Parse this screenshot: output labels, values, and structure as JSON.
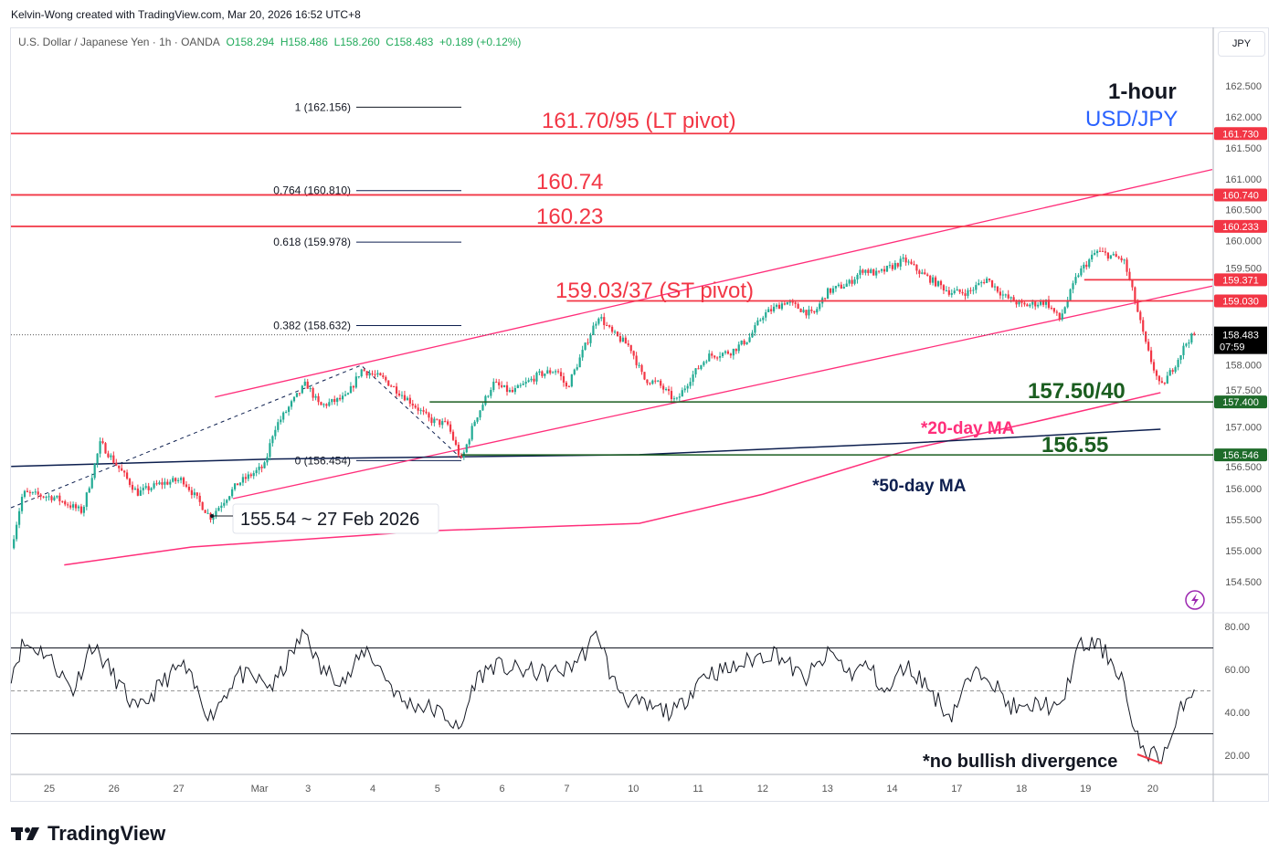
{
  "credit": "Kelvin-Wong created with TradingView.com, Mar 20, 2026 16:52 UTC+8",
  "legend": {
    "symbol": "U.S. Dollar / Japanese Yen · 1h · OANDA",
    "o": "O158.294",
    "h": "H158.486",
    "l": "L158.260",
    "c": "C158.483",
    "chg": "+0.189 (+0.12%)"
  },
  "currency_button": "JPY",
  "logo": "TradingView",
  "colors": {
    "up": "#22ab94",
    "down": "#f23645",
    "resistance": "#f23645",
    "support": "#1b5e20",
    "ma20": "#ff2e7a",
    "ma50": "#0d1f4f",
    "title_blue": "#2962ff"
  },
  "chart_data": [
    {
      "type": "candlestick",
      "timeframe": "1h",
      "ylim": [
        154.2,
        163.0
      ],
      "y_ticks": [
        "162.500",
        "162.000",
        "161.500",
        "161.000",
        "160.500",
        "160.000",
        "159.500",
        "158.000",
        "157.500",
        "157.000",
        "156.500",
        "156.000",
        "155.500",
        "155.000",
        "154.500"
      ],
      "x_ticks": [
        {
          "label": "25",
          "t": 0
        },
        {
          "label": "26",
          "t": 1
        },
        {
          "label": "27",
          "t": 2
        },
        {
          "label": "Mar",
          "t": 3.25
        },
        {
          "label": "3",
          "t": 4
        },
        {
          "label": "4",
          "t": 5
        },
        {
          "label": "5",
          "t": 6
        },
        {
          "label": "6",
          "t": 7
        },
        {
          "label": "7",
          "t": 8
        },
        {
          "label": "10",
          "t": 9.03
        },
        {
          "label": "11",
          "t": 10.03
        },
        {
          "label": "12",
          "t": 11.03
        },
        {
          "label": "13",
          "t": 12.03
        },
        {
          "label": "14",
          "t": 13.03
        },
        {
          "label": "17",
          "t": 14.03
        },
        {
          "label": "18",
          "t": 15.03
        },
        {
          "label": "19",
          "t": 16.02
        },
        {
          "label": "20",
          "t": 17.06
        }
      ],
      "price_path": [
        [
          -0.59,
          155.04
        ],
        [
          -0.41,
          155.93
        ],
        [
          0.08,
          155.86
        ],
        [
          0.51,
          155.63
        ],
        [
          0.79,
          156.74
        ],
        [
          1.0,
          156.44
        ],
        [
          1.36,
          155.93
        ],
        [
          1.71,
          156.08
        ],
        [
          2.06,
          156.15
        ],
        [
          2.49,
          155.54
        ],
        [
          2.91,
          156.08
        ],
        [
          3.33,
          156.37
        ],
        [
          3.47,
          156.96
        ],
        [
          3.76,
          157.4
        ],
        [
          3.97,
          157.7
        ],
        [
          4.18,
          157.33
        ],
        [
          4.6,
          157.48
        ],
        [
          4.82,
          157.92
        ],
        [
          5.17,
          157.77
        ],
        [
          5.59,
          157.4
        ],
        [
          5.88,
          157.11
        ],
        [
          6.16,
          157.03
        ],
        [
          6.37,
          156.45
        ],
        [
          6.58,
          157.11
        ],
        [
          6.86,
          157.7
        ],
        [
          7.15,
          157.55
        ],
        [
          7.57,
          157.84
        ],
        [
          7.85,
          157.92
        ],
        [
          8.0,
          157.62
        ],
        [
          8.28,
          158.29
        ],
        [
          8.49,
          158.8
        ],
        [
          8.7,
          158.51
        ],
        [
          8.98,
          158.29
        ],
        [
          9.19,
          157.77
        ],
        [
          9.41,
          157.7
        ],
        [
          9.69,
          157.4
        ],
        [
          9.9,
          157.77
        ],
        [
          10.18,
          158.14
        ],
        [
          10.54,
          158.21
        ],
        [
          10.82,
          158.43
        ],
        [
          11.03,
          158.8
        ],
        [
          11.38,
          159.02
        ],
        [
          11.81,
          158.8
        ],
        [
          12.02,
          159.17
        ],
        [
          12.37,
          159.32
        ],
        [
          12.58,
          159.54
        ],
        [
          12.8,
          159.46
        ],
        [
          13.22,
          159.69
        ],
        [
          13.5,
          159.46
        ],
        [
          13.93,
          159.17
        ],
        [
          14.21,
          159.17
        ],
        [
          14.49,
          159.39
        ],
        [
          14.77,
          159.1
        ],
        [
          15.06,
          158.95
        ],
        [
          15.41,
          159.02
        ],
        [
          15.62,
          158.73
        ],
        [
          15.9,
          159.46
        ],
        [
          16.19,
          159.83
        ],
        [
          16.61,
          159.69
        ],
        [
          16.75,
          159.17
        ],
        [
          16.96,
          158.29
        ],
        [
          17.18,
          157.62
        ],
        [
          17.39,
          157.98
        ],
        [
          17.6,
          158.4
        ],
        [
          17.71,
          158.48
        ]
      ],
      "last_price": "158.483",
      "countdown": "07:59",
      "levels": [
        {
          "price": 161.73,
          "label": "161.730",
          "kind": "resistance"
        },
        {
          "price": 160.74,
          "label": "160.740",
          "kind": "resistance"
        },
        {
          "price": 160.233,
          "label": "160.233",
          "kind": "resistance"
        },
        {
          "price": 159.371,
          "label": "159.371",
          "kind": "resistance",
          "from_t": 16.0
        },
        {
          "price": 159.03,
          "label": "159.030",
          "kind": "resistance",
          "from_t": 8.0
        },
        {
          "price": 157.4,
          "label": "157.400",
          "kind": "support",
          "from_t": 5.88
        },
        {
          "price": 156.546,
          "label": "156.546",
          "kind": "support",
          "from_t": 6.37
        }
      ],
      "fibonacci": [
        {
          "label": "1 (162.156)",
          "price": 162.156
        },
        {
          "label": "0.764 (160.810)",
          "price": 160.81
        },
        {
          "label": "0.618 (159.978)",
          "price": 159.978
        },
        {
          "label": "0.382 (158.632)",
          "price": 158.632
        },
        {
          "label": "0 (156.454)",
          "price": 156.454
        }
      ],
      "channel": {
        "upper": [
          [
            2.56,
            157.48
          ],
          [
            17.98,
            161.15
          ]
        ],
        "lower": [
          [
            2.84,
            155.84
          ],
          [
            17.98,
            159.27
          ]
        ]
      },
      "ma20": [
        [
          0.23,
          154.77
        ],
        [
          2.2,
          155.06
        ],
        [
          5.88,
          155.32
        ],
        [
          9.12,
          155.44
        ],
        [
          11.03,
          155.91
        ],
        [
          13.36,
          156.65
        ],
        [
          15.2,
          157.07
        ],
        [
          17.18,
          157.55
        ]
      ],
      "ma50": [
        [
          -0.59,
          156.36
        ],
        [
          3.47,
          156.48
        ],
        [
          9.12,
          156.55
        ],
        [
          13.36,
          156.74
        ],
        [
          17.18,
          156.96
        ]
      ],
      "annotations": [
        {
          "text": "161.70/95  (LT pivot)",
          "kind": "resistance"
        },
        {
          "text": "160.74",
          "kind": "resistance"
        },
        {
          "text": "160.23",
          "kind": "resistance"
        },
        {
          "text": "159.03/37 (ST pivot)",
          "kind": "resistance"
        },
        {
          "text": "157.50/40",
          "kind": "support"
        },
        {
          "text": "*20-day MA",
          "kind": "ma20"
        },
        {
          "text": "156.55",
          "kind": "support"
        },
        {
          "text": "*50-day MA",
          "kind": "ma50"
        },
        {
          "text": "155.54 ~ 27 Feb 2026",
          "kind": "callout"
        },
        {
          "text": "1-hour",
          "kind": "title"
        },
        {
          "text": "USD/JPY",
          "kind": "title_blue"
        }
      ]
    },
    {
      "type": "line",
      "name": "RSI",
      "ylim": [
        10,
        85
      ],
      "y_ticks": [
        "80.00",
        "60.00",
        "40.00",
        "20.00"
      ],
      "bands": [
        30,
        50,
        70
      ],
      "values": [
        [
          -0.59,
          58
        ],
        [
          -0.41,
          72
        ],
        [
          -0.06,
          68
        ],
        [
          0.37,
          50
        ],
        [
          0.65,
          72
        ],
        [
          0.93,
          60
        ],
        [
          1.36,
          40
        ],
        [
          1.78,
          55
        ],
        [
          2.06,
          62
        ],
        [
          2.49,
          38
        ],
        [
          2.91,
          58
        ],
        [
          3.47,
          52
        ],
        [
          3.76,
          68
        ],
        [
          3.97,
          78
        ],
        [
          4.18,
          60
        ],
        [
          4.6,
          55
        ],
        [
          4.89,
          70
        ],
        [
          5.17,
          58
        ],
        [
          5.45,
          45
        ],
        [
          5.88,
          42
        ],
        [
          6.16,
          38
        ],
        [
          6.34,
          30
        ],
        [
          6.58,
          55
        ],
        [
          6.86,
          62
        ],
        [
          7.15,
          60
        ],
        [
          7.71,
          58
        ],
        [
          8.0,
          60
        ],
        [
          8.28,
          68
        ],
        [
          8.49,
          77
        ],
        [
          8.7,
          55
        ],
        [
          8.98,
          45
        ],
        [
          9.27,
          42
        ],
        [
          9.69,
          40
        ],
        [
          10.11,
          58
        ],
        [
          10.54,
          60
        ],
        [
          10.96,
          66
        ],
        [
          11.24,
          68
        ],
        [
          11.67,
          55
        ],
        [
          12.09,
          68
        ],
        [
          12.37,
          58
        ],
        [
          12.66,
          62
        ],
        [
          12.94,
          48
        ],
        [
          13.22,
          62
        ],
        [
          13.5,
          55
        ],
        [
          13.93,
          38
        ],
        [
          14.21,
          55
        ],
        [
          14.49,
          60
        ],
        [
          14.77,
          45
        ],
        [
          15.06,
          40
        ],
        [
          15.34,
          45
        ],
        [
          15.62,
          40
        ],
        [
          15.9,
          70
        ],
        [
          16.19,
          72
        ],
        [
          16.4,
          65
        ],
        [
          16.61,
          55
        ],
        [
          16.75,
          30
        ],
        [
          16.96,
          22
        ],
        [
          17.18,
          19
        ],
        [
          17.39,
          30
        ],
        [
          17.53,
          45
        ],
        [
          17.71,
          52
        ]
      ],
      "annotation": "*no bullish divergence"
    }
  ]
}
